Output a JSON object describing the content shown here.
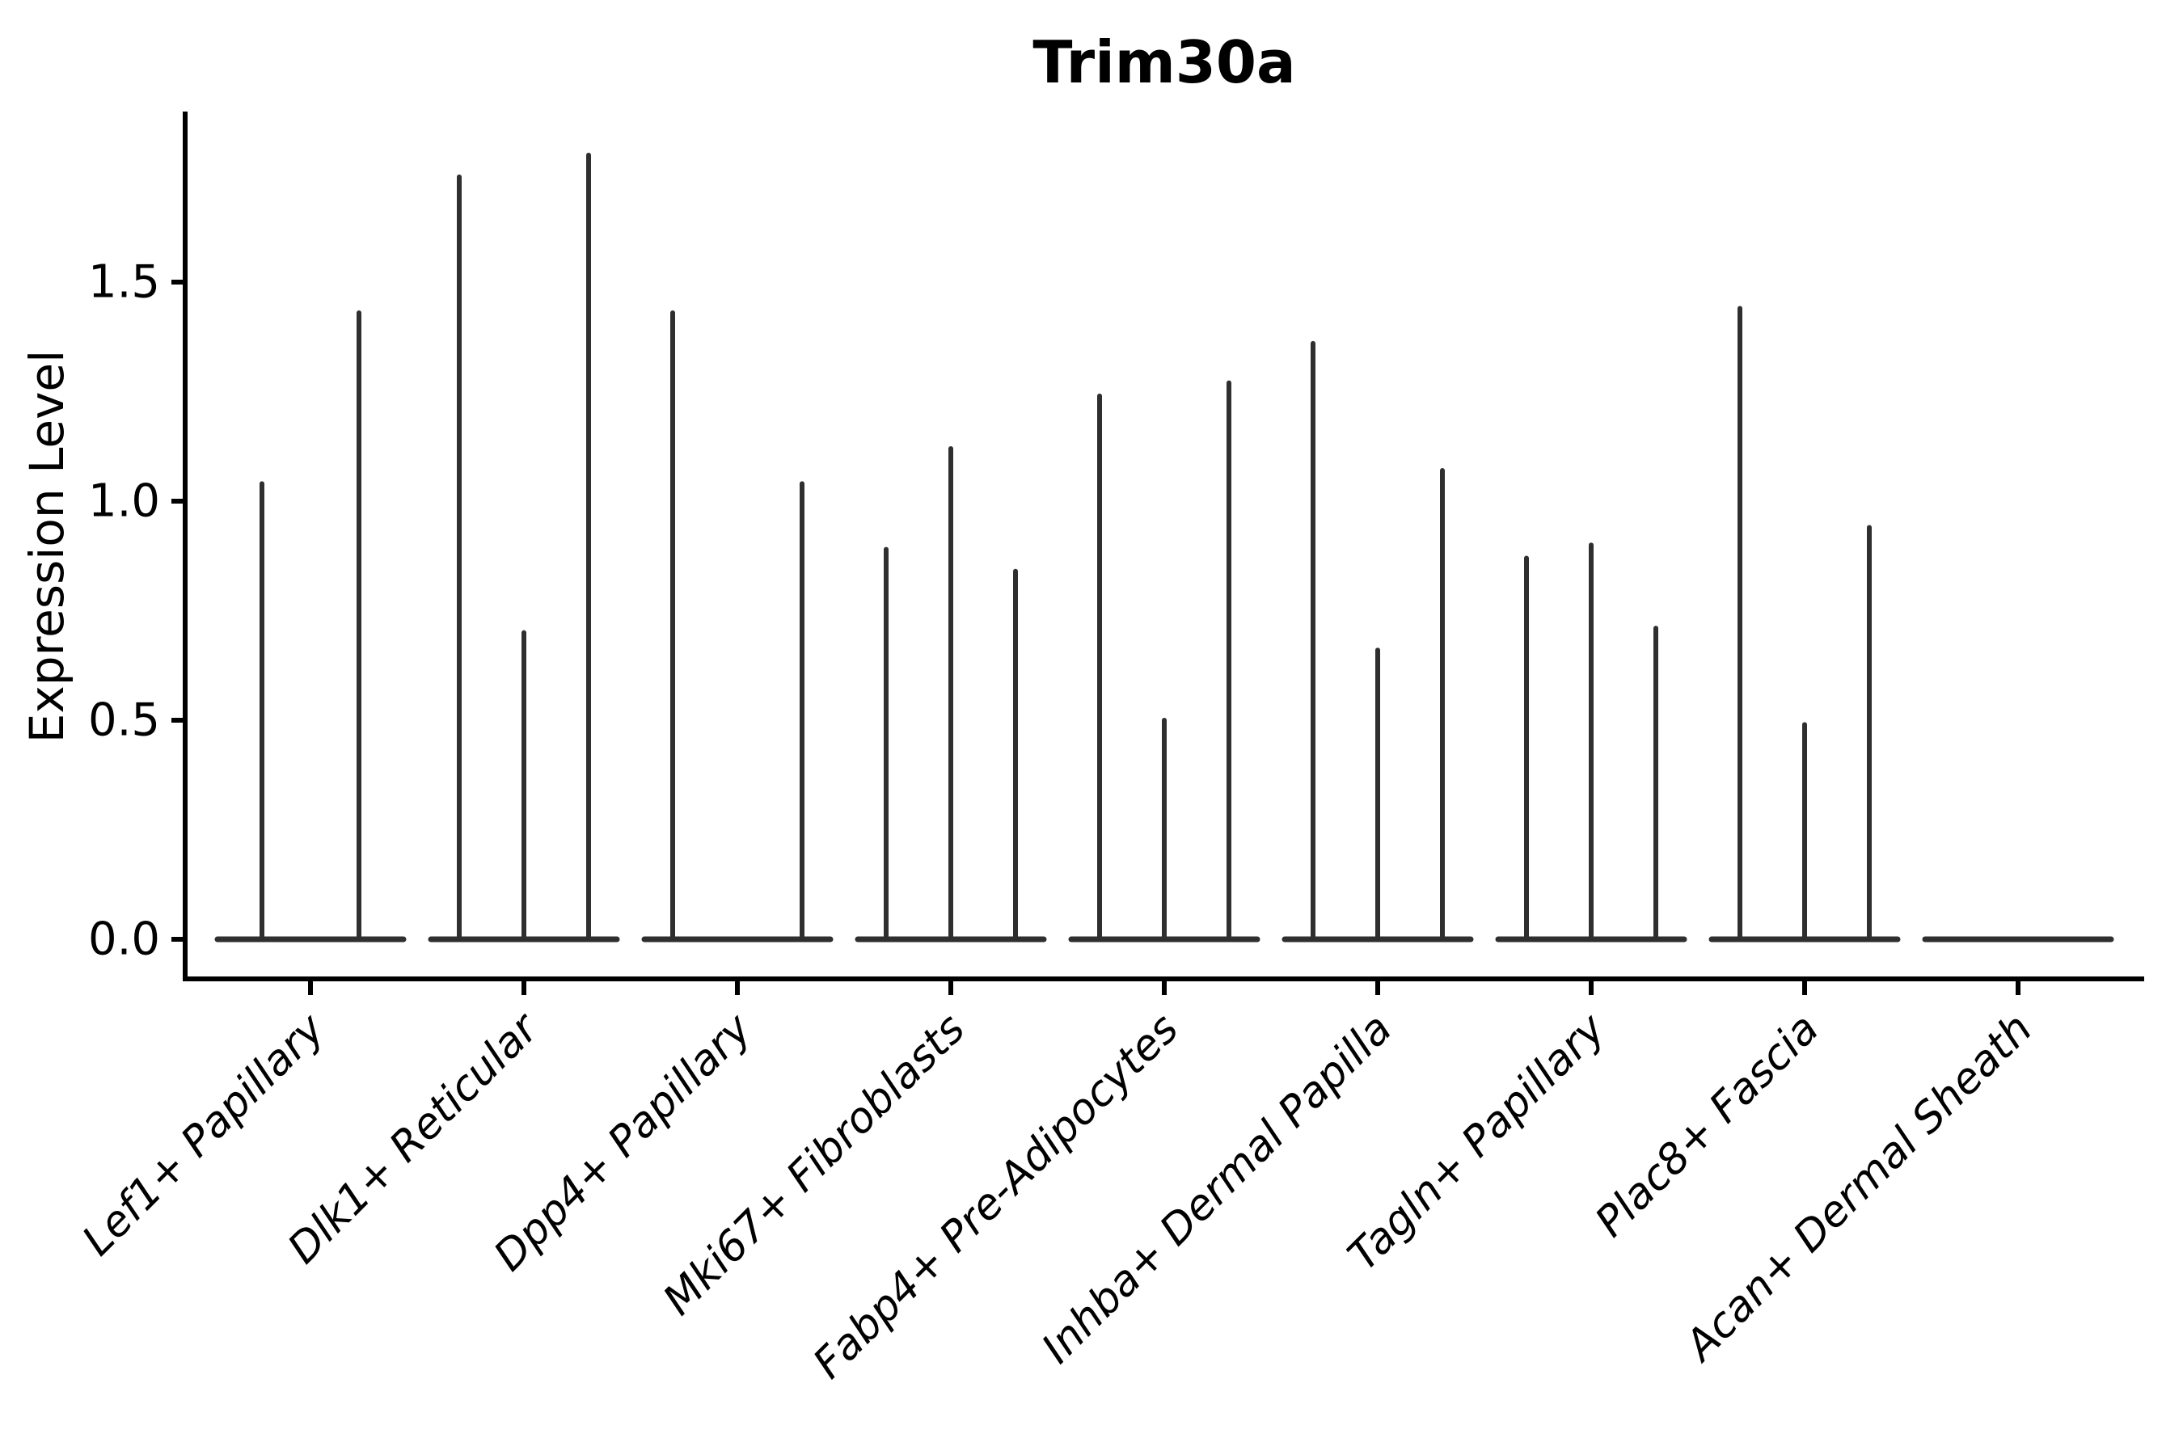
{
  "chart_data": {
    "type": "violin",
    "title": "Trim30a",
    "xlabel": "",
    "ylabel": "Expression Level",
    "ytick_labels": [
      "0.0",
      "0.5",
      "1.0",
      "1.5"
    ],
    "ytick_values": [
      0.0,
      0.5,
      1.0,
      1.5
    ],
    "ylim": [
      0.0,
      1.88
    ],
    "grid": "off",
    "legend": "none",
    "background_color": "#ffffff",
    "axis_color": "#000000",
    "violin_line_color": "#2f2f2f",
    "categories": [
      "Lef1+ Papillary",
      "Dlk1+ Reticular",
      "Dpp4+ Papillary",
      "Mki67+ Fibroblasts",
      "Fabp4+ Pre-Adipocytes",
      "Inhba+ Dermal Papilla",
      "Tagln+ Papillary",
      "Plac8+ Fascia",
      "Acan+ Dermal Sheath"
    ],
    "groups": [
      {
        "category": "Lef1+ Papillary",
        "baseline_halfwidth": 120,
        "violins": [
          {
            "offset": -60,
            "peak": 1.04
          },
          {
            "offset": 60,
            "peak": 1.43
          }
        ]
      },
      {
        "category": "Dlk1+ Reticular",
        "baseline_halfwidth": 120,
        "violins": [
          {
            "offset": -80,
            "peak": 1.74
          },
          {
            "offset": 0,
            "peak": 0.7
          },
          {
            "offset": 80,
            "peak": 1.79
          }
        ]
      },
      {
        "category": "Dpp4+ Papillary",
        "baseline_halfwidth": 120,
        "violins": [
          {
            "offset": -80,
            "peak": 1.43
          },
          {
            "offset": 0,
            "peak": 0.0
          },
          {
            "offset": 80,
            "peak": 1.04
          }
        ]
      },
      {
        "category": "Mki67+ Fibroblasts",
        "baseline_halfwidth": 120,
        "violins": [
          {
            "offset": -80,
            "peak": 0.89
          },
          {
            "offset": 0,
            "peak": 1.12
          },
          {
            "offset": 80,
            "peak": 0.84
          }
        ]
      },
      {
        "category": "Fabp4+ Pre-Adipocytes",
        "baseline_halfwidth": 120,
        "violins": [
          {
            "offset": -80,
            "peak": 1.24
          },
          {
            "offset": 0,
            "peak": 0.5
          },
          {
            "offset": 80,
            "peak": 1.27
          }
        ]
      },
      {
        "category": "Inhba+ Dermal Papilla",
        "baseline_halfwidth": 120,
        "violins": [
          {
            "offset": -80,
            "peak": 1.36
          },
          {
            "offset": 0,
            "peak": 0.66
          },
          {
            "offset": 80,
            "peak": 1.07
          }
        ]
      },
      {
        "category": "Tagln+ Papillary",
        "baseline_halfwidth": 120,
        "violins": [
          {
            "offset": -80,
            "peak": 0.87
          },
          {
            "offset": 0,
            "peak": 0.9
          },
          {
            "offset": 80,
            "peak": 0.71
          }
        ]
      },
      {
        "category": "Plac8+ Fascia",
        "baseline_halfwidth": 120,
        "violins": [
          {
            "offset": -80,
            "peak": 1.44
          },
          {
            "offset": 0,
            "peak": 0.49
          },
          {
            "offset": 80,
            "peak": 0.94
          }
        ]
      },
      {
        "category": "Acan+ Dermal Sheath",
        "baseline_halfwidth": 120,
        "violins": []
      }
    ]
  }
}
